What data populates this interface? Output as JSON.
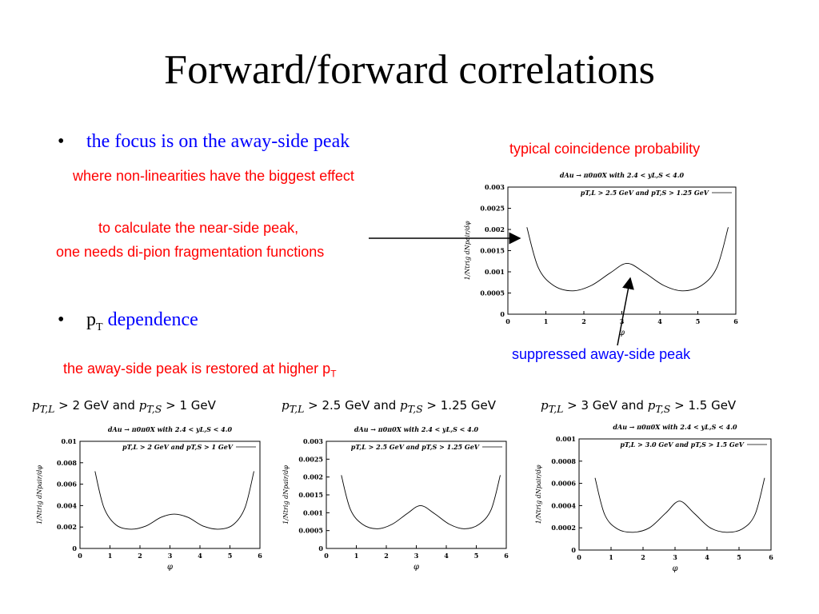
{
  "slide": {
    "title": "Forward/forward correlations",
    "bullet1": "the focus is on the away-side peak",
    "note_nonlinear": "where non-linearities have the biggest effect",
    "note_near_line1": "to calculate the near-side peak,",
    "note_near_line2": "one needs di-pion fragmentation functions",
    "bullet2_p": "p",
    "bullet2_sub": "T",
    "bullet2_rest": " dependence",
    "note_restored": "the away-side peak is restored at higher p",
    "note_restored_sub": "T",
    "label_typical": "typical coincidence probability",
    "label_suppressed": "suppressed away-side peak",
    "bullet_symbol": "•"
  },
  "captions": [
    {
      "pre": "p",
      "sub1": "T,L",
      "mid1": " > 2 GeV and ",
      "p2": "p",
      "sub2": "T,S",
      "end": " > 1 GeV"
    },
    {
      "pre": "p",
      "sub1": "T,L",
      "mid1": " > 2.5 GeV and ",
      "p2": "p",
      "sub2": "T,S",
      "end": " > 1.25 GeV"
    },
    {
      "pre": "p",
      "sub1": "T,L",
      "mid1": " > 3 GeV and ",
      "p2": "p",
      "sub2": "T,S",
      "end": " > 1.5 GeV"
    }
  ],
  "chart_data": [
    {
      "type": "line",
      "title": "dAu → π0π0X with 2.4 < yL,S < 4.0",
      "legend": "pT,L > 2.5 GeV and pT,S > 1.25 GeV",
      "xlabel": "φ",
      "ylabel": "1/Ntrig dNpair/dφ",
      "xlim": [
        0,
        6
      ],
      "ylim": [
        0,
        0.003
      ],
      "xticks": [
        "0",
        "1",
        "2",
        "3",
        "4",
        "5",
        "6"
      ],
      "yticks": [
        "0",
        "0.0005",
        "0.001",
        "0.0015",
        "0.002",
        "0.0025",
        "0.003"
      ],
      "x": [
        0.5,
        0.8,
        1.2,
        1.7,
        2.2,
        2.7,
        3.14,
        3.6,
        4.1,
        4.6,
        5.1,
        5.5,
        5.8
      ],
      "y": [
        0.00205,
        0.0011,
        0.00068,
        0.00055,
        0.00068,
        0.00098,
        0.0012,
        0.00098,
        0.00068,
        0.00055,
        0.00068,
        0.0011,
        0.00205
      ],
      "grid": false,
      "legend_position": "top-right"
    },
    {
      "type": "line",
      "title": "dAu → π0π0X with 2.4 < yL,S < 4.0",
      "legend": "pT,L > 2 GeV and pT,S > 1 GeV",
      "xlabel": "φ",
      "ylabel": "1/Ntrig dNpair/dφ",
      "xlim": [
        0,
        6
      ],
      "ylim": [
        0,
        0.01
      ],
      "xticks": [
        "0",
        "1",
        "2",
        "3",
        "4",
        "5",
        "6"
      ],
      "yticks": [
        "0",
        "0.002",
        "0.004",
        "0.006",
        "0.008",
        "0.01"
      ],
      "x": [
        0.5,
        0.8,
        1.2,
        1.7,
        2.2,
        2.7,
        3.14,
        3.6,
        4.1,
        4.6,
        5.1,
        5.5,
        5.8
      ],
      "y": [
        0.0072,
        0.0038,
        0.0022,
        0.0018,
        0.0021,
        0.0029,
        0.0032,
        0.0029,
        0.0021,
        0.0018,
        0.0022,
        0.0038,
        0.0072
      ],
      "grid": false,
      "legend_position": "top-right"
    },
    {
      "type": "line",
      "title": "dAu → π0π0X with 2.4 < yL,S < 4.0",
      "legend": "pT,L > 2.5 GeV and pT,S > 1.25 GeV",
      "xlabel": "φ",
      "ylabel": "1/Ntrig dNpair/dφ",
      "xlim": [
        0,
        6
      ],
      "ylim": [
        0,
        0.003
      ],
      "xticks": [
        "0",
        "1",
        "2",
        "3",
        "4",
        "5",
        "6"
      ],
      "yticks": [
        "0",
        "0.0005",
        "0.001",
        "0.0015",
        "0.002",
        "0.0025",
        "0.003"
      ],
      "x": [
        0.5,
        0.8,
        1.2,
        1.7,
        2.2,
        2.7,
        3.14,
        3.6,
        4.1,
        4.6,
        5.1,
        5.5,
        5.8
      ],
      "y": [
        0.00205,
        0.0011,
        0.00068,
        0.00055,
        0.00068,
        0.00098,
        0.0012,
        0.00098,
        0.00068,
        0.00055,
        0.00068,
        0.0011,
        0.00205
      ],
      "grid": false,
      "legend_position": "top-right"
    },
    {
      "type": "line",
      "title": "dAu → π0π0X with 2.4 < yL,S < 4.0",
      "legend": "pT,L > 3.0 GeV and pT,S > 1.5 GeV",
      "xlabel": "φ",
      "ylabel": "1/Ntrig dNpair/dφ",
      "xlim": [
        0,
        6
      ],
      "ylim": [
        0,
        0.001
      ],
      "xticks": [
        "0",
        "1",
        "2",
        "3",
        "4",
        "5",
        "6"
      ],
      "yticks": [
        "0",
        "0.0002",
        "0.0004",
        "0.0006",
        "0.0008",
        "0.001"
      ],
      "x": [
        0.5,
        0.8,
        1.2,
        1.7,
        2.2,
        2.7,
        3.14,
        3.6,
        4.1,
        4.6,
        5.1,
        5.5,
        5.8
      ],
      "y": [
        0.00065,
        0.00032,
        0.00019,
        0.00016,
        0.0002,
        0.00033,
        0.00044,
        0.00033,
        0.0002,
        0.00016,
        0.00019,
        0.00032,
        0.00065
      ],
      "grid": false,
      "legend_position": "top-right"
    }
  ]
}
